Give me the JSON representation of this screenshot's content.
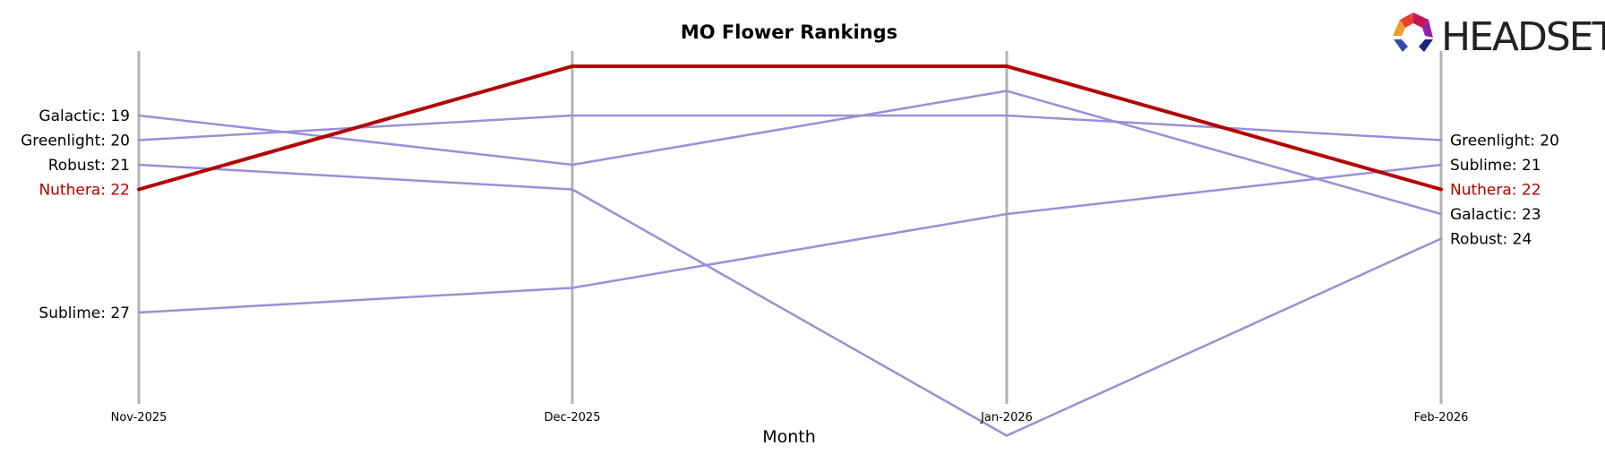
{
  "brand": {
    "logo_text": "HEADSET"
  },
  "chart_data": {
    "type": "line",
    "title": "MO Flower Rankings",
    "xlabel": "Month",
    "ylabel": "",
    "y_inverted": true,
    "ylim": [
      31.5,
      16.5
    ],
    "grid": false,
    "categories": [
      "Nov-2025",
      "Dec-2025",
      "Jan-2026",
      "Feb-2026"
    ],
    "highlight_color": "#b30000",
    "series_color": "#9b8fd6",
    "axis_color": "#b3b3b3",
    "series": [
      {
        "name": "Galactic",
        "values": [
          19,
          21,
          18,
          23
        ],
        "highlight": false
      },
      {
        "name": "Greenlight",
        "values": [
          20,
          19,
          19,
          20
        ],
        "highlight": false
      },
      {
        "name": "Robust",
        "values": [
          21,
          22,
          32,
          24
        ],
        "highlight": false
      },
      {
        "name": "Sublime",
        "values": [
          27,
          26,
          23,
          21
        ],
        "highlight": false
      },
      {
        "name": "Nuthera",
        "values": [
          22,
          17,
          17,
          22
        ],
        "highlight": true
      }
    ],
    "left_labels": [
      {
        "text": "Galactic: 19",
        "value": 19,
        "highlight": false
      },
      {
        "text": "Greenlight: 20",
        "value": 20,
        "highlight": false
      },
      {
        "text": "Robust: 21",
        "value": 21,
        "highlight": false
      },
      {
        "text": "Nuthera: 22",
        "value": 22,
        "highlight": true
      },
      {
        "text": "Sublime: 27",
        "value": 27,
        "highlight": false
      }
    ],
    "right_labels": [
      {
        "text": "Greenlight: 20",
        "value": 20,
        "highlight": false
      },
      {
        "text": "Sublime: 21",
        "value": 21,
        "highlight": false
      },
      {
        "text": "Nuthera: 22",
        "value": 22,
        "highlight": true
      },
      {
        "text": "Galactic: 23",
        "value": 23,
        "highlight": false
      },
      {
        "text": "Robust: 24",
        "value": 24,
        "highlight": false
      }
    ]
  }
}
